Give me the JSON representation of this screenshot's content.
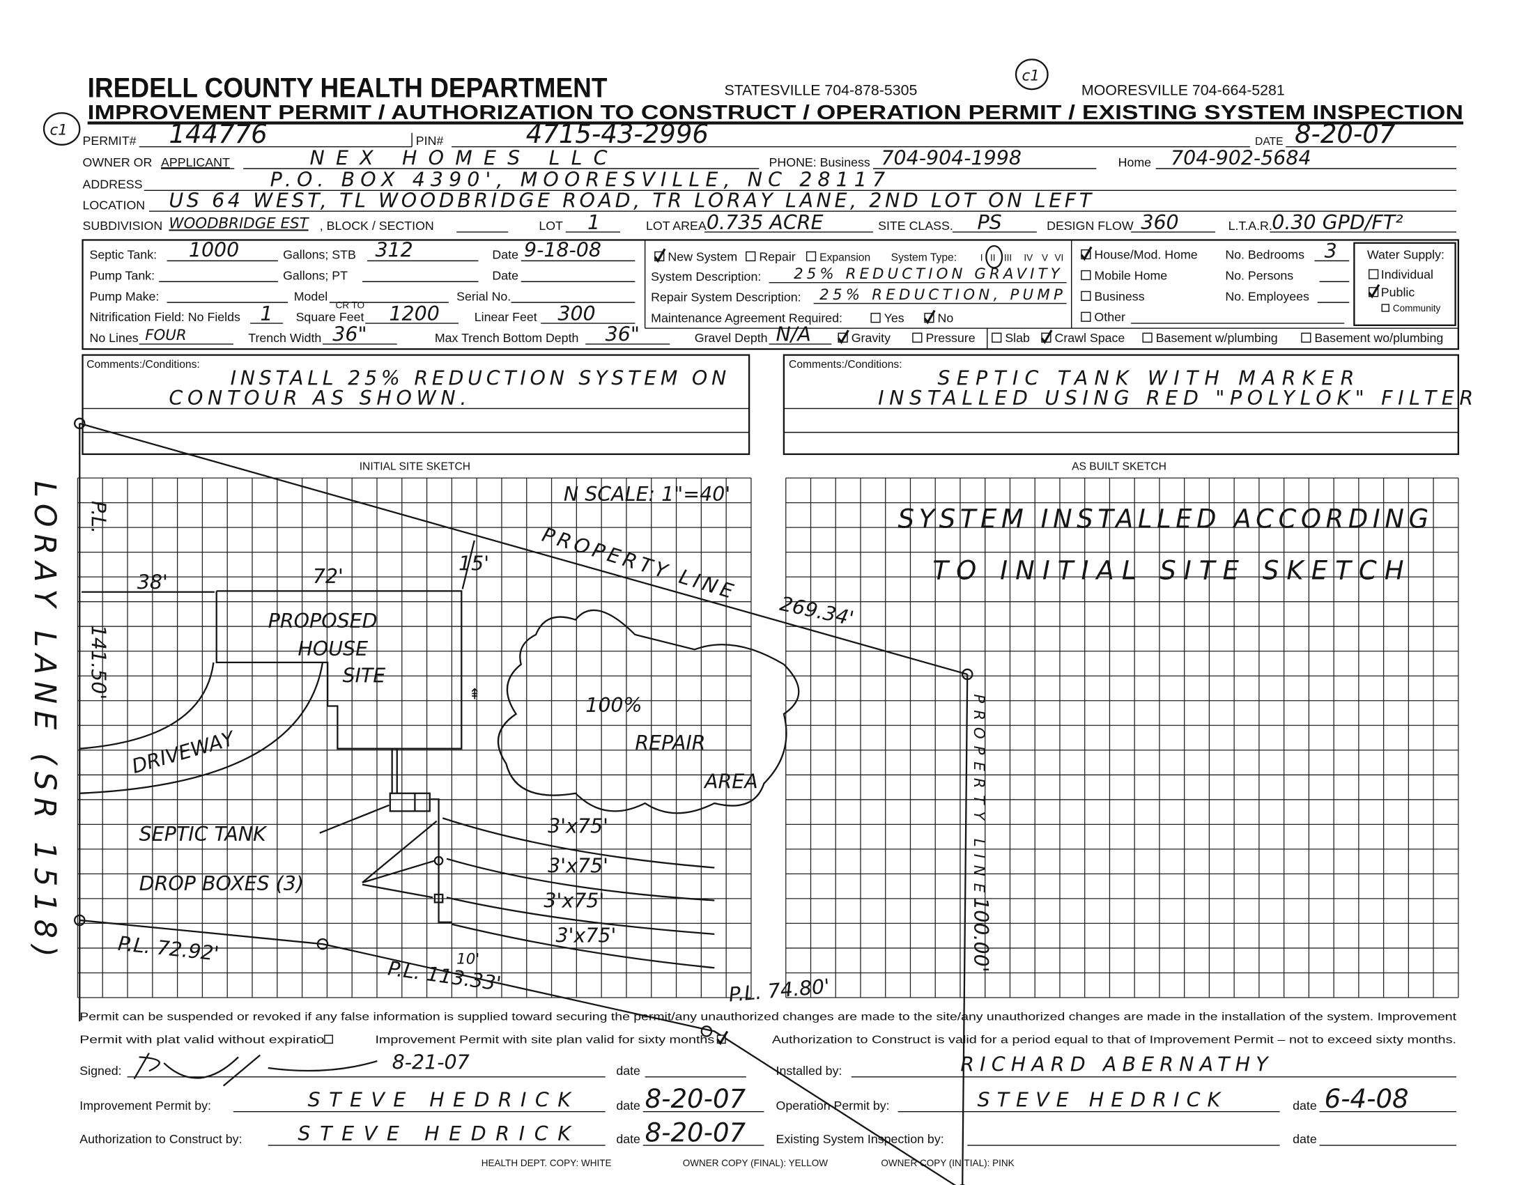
{
  "header": {
    "org_title": "IREDELL COUNTY HEALTH DEPARTMENT",
    "statesville": "STATESVILLE 704-878-5305",
    "mooresville": "MOORESVILLE 704-664-5281",
    "subtitle": "IMPROVEMENT PERMIT / AUTHORIZATION TO CONSTRUCT / OPERATION PERMIT / EXISTING SYSTEM INSPECTION",
    "initials_mark": "c1"
  },
  "permit": {
    "permit_no": {
      "label": "PERMIT#",
      "value": "144776"
    },
    "pin": {
      "label": "PIN#",
      "value": "4715-43-2996"
    },
    "date": {
      "label": "DATE",
      "value": "8-20-07"
    },
    "owner": {
      "label_prefix": "OWNER OR ",
      "label_applicant": "APPLICANT",
      "value": "NEX HOMES LLC"
    },
    "phone_business": {
      "label": "PHONE: Business",
      "value": "704-904-1998"
    },
    "phone_home": {
      "label": "Home",
      "value": "704-902-5684"
    },
    "address": {
      "label": "ADDRESS",
      "value": "P.O. BOX 4390',   MOORESVILLE,   NC  28117"
    },
    "location": {
      "label": "LOCATION",
      "value": "US 64 WEST,  TL WOODBRIDGE ROAD,  TR LORAY LANE,  2ND LOT ON LEFT"
    },
    "subdivision": {
      "label": "SUBDIVISION",
      "value": "WOODBRIDGE EST"
    },
    "block_section": {
      "label": ", BLOCK / SECTION",
      "value": ""
    },
    "lot": {
      "label": "LOT",
      "value": "1"
    },
    "lot_area": {
      "label": "LOT AREA",
      "value": "0.735 ACRE"
    },
    "site_class": {
      "label": "SITE CLASS.",
      "value": "PS"
    },
    "design_flow": {
      "label": "DESIGN FLOW",
      "value": "360"
    },
    "ltar": {
      "label": "L.T.A.R.",
      "value": "0.30 GPD/FT²"
    }
  },
  "details": {
    "septic_tank": {
      "label": "Septic Tank:",
      "value": "1000",
      "gallons_stb_label": "Gallons;  STB",
      "stb": "312",
      "date_label": "Date",
      "date": "9-18-08"
    },
    "pump_tank": {
      "label": "Pump Tank:",
      "gallons_pt_label": "Gallons;  PT",
      "date_label": "Date"
    },
    "pump_make": {
      "label": "Pump Make:",
      "model_label": "Model",
      "serial_label": "Serial No."
    },
    "nitrification": {
      "label": "Nitrification Field: No Fields",
      "fields": "1",
      "sqft_label": "Square Feet",
      "sqft_note": "CR TO",
      "sqft": "1200",
      "linear_label": "Linear Feet",
      "linear": "300"
    },
    "lines": {
      "label": "No Lines",
      "value": "FOUR",
      "trench_width_label": "Trench Width",
      "trench_width": "36\"",
      "max_depth_label": "Max Trench Bottom Depth",
      "max_depth": "36\"",
      "gravel_label": "Gravel Depth",
      "gravel": "N/A"
    },
    "distribution": {
      "gravity": {
        "label": "Gravity",
        "checked": true
      },
      "pressure": {
        "label": "Pressure",
        "checked": false
      }
    },
    "foundation": {
      "slab": {
        "label": "Slab",
        "checked": false
      },
      "crawl": {
        "label": "Crawl Space",
        "checked": true
      },
      "basement_w": {
        "label": "Basement w/plumbing",
        "checked": false
      },
      "basement_wo": {
        "label": "Basement wo/plumbing",
        "checked": false
      }
    },
    "system": {
      "new_system": {
        "label": "New System",
        "checked": true
      },
      "repair": {
        "label": "Repair",
        "checked": false
      },
      "expansion": {
        "label": "Expansion",
        "checked": false
      },
      "type_label": "System Type:",
      "types": [
        "I",
        "II",
        "III",
        "IV",
        "V",
        "VI"
      ],
      "type_selected": "II",
      "description_label": "System Description:",
      "description": "25% REDUCTION GRAVITY",
      "repair_description_label": "Repair System Description:",
      "repair_description": "25% REDUCTION, PUMP",
      "maintenance_label": "Maintenance Agreement Required:",
      "maint_yes": {
        "label": "Yes",
        "checked": false
      },
      "maint_no": {
        "label": "No",
        "checked": true
      }
    },
    "building": {
      "house": {
        "label": "House/Mod. Home",
        "checked": true
      },
      "mobile": {
        "label": "Mobile Home",
        "checked": false
      },
      "business": {
        "label": "Business",
        "checked": false
      },
      "other": {
        "label": "Other",
        "checked": false
      },
      "bedrooms_label": "No. Bedrooms",
      "bedrooms": "3",
      "persons_label": "No. Persons",
      "employees_label": "No. Employees"
    },
    "water": {
      "label": "Water Supply:",
      "individual": {
        "label": "Individual",
        "checked": false
      },
      "public": {
        "label": "Public",
        "checked": true
      },
      "community": {
        "label": "Community",
        "checked": false
      }
    }
  },
  "comments": {
    "label": "Comments:/Conditions:",
    "left": [
      "INSTALL 25% REDUCTION SYSTEM ON",
      "CONTOUR AS SHOWN."
    ],
    "right": [
      "SEPTIC TANK WITH MARKER",
      "INSTALLED USING RED \"POLYLOK\" FILTER"
    ]
  },
  "sketch": {
    "initial_title": "INITIAL SITE SKETCH",
    "as_built_title": "AS BUILT SKETCH",
    "road": "LORAY LANE (SR 1518)",
    "scale": "N  SCALE: 1\"=40'",
    "pl_left": "P.L.",
    "pl_left_len": "141.50'",
    "property_line": "PROPERTY LINE",
    "pl_top_len": "269.34'",
    "pl_right": "PROPERTY LINE",
    "pl_right_len": "100.00'",
    "pl_bottom_a": "P.L. 72.92'",
    "pl_bottom_b": "P.L. 113.33'",
    "pl_bottom_c": "P.L. 74.80'",
    "dim_38": "38'",
    "dim_72": "72'",
    "dim_15": "15'",
    "dim_10": "10'",
    "house": [
      "PROPOSED",
      "HOUSE",
      "SITE"
    ],
    "driveway": "DRIVEWAY",
    "septic_tank": "SEPTIC TANK",
    "drop_boxes": "DROP BOXES (3)",
    "trenches": [
      "3'x75'",
      "3'x75'",
      "3'x75'",
      "3'x75'"
    ],
    "repair": [
      "100%",
      "REPAIR",
      "AREA"
    ],
    "as_built_note": [
      "SYSTEM INSTALLED ACCORDING",
      "TO INITIAL SITE SKETCH"
    ]
  },
  "footer": {
    "notice_1": "Permit can be suspended or revoked if any false information is supplied toward securing the permit/any unauthorized changes are made to the site/any unauthorized changes are made in the installation of the system. Improvement",
    "notice_2a": "Permit with plat valid without expiration",
    "plat_checked": false,
    "notice_2b": "Improvement Permit with site plan valid for sixty months",
    "site_plan_checked": true,
    "notice_2c": "Authorization to Construct is valid for a period equal to that of Improvement Permit – not to exceed sixty months.",
    "signed_label": "Signed:",
    "signed_date_written": "8-21-07",
    "date_label": "date",
    "installed_label": "Installed by:",
    "installed_by": "RICHARD ABERNATHY",
    "improvement_label": "Improvement Permit by:",
    "improvement_by": "STEVE HEDRICK",
    "improvement_date": "8-20-07",
    "operation_label": "Operation Permit by:",
    "operation_by": "STEVE HEDRICK",
    "operation_date": "6-4-08",
    "authorization_label": "Authorization to Construct by:",
    "authorization_by": "STEVE HEDRICK",
    "authorization_date": "8-20-07",
    "existing_label": "Existing System Inspection by:",
    "copy_white": "HEALTH DEPT. COPY: WHITE",
    "copy_yellow": "OWNER COPY (FINAL): YELLOW",
    "copy_pink": "OWNER COPY (INITIAL): PINK"
  },
  "colors": {
    "ink": "#151515",
    "paper": "#ffffff"
  }
}
